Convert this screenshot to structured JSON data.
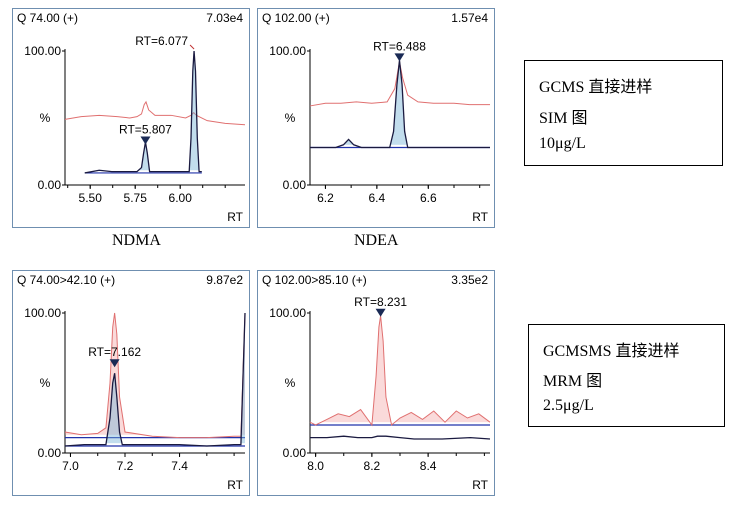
{
  "chart_data": [
    {
      "type": "line",
      "panel": "top-left",
      "header_left": "Q 74.00 (+)",
      "header_right": "7.03e4",
      "xlabel": "RT",
      "ylabel": "%",
      "xlim": [
        5.36,
        6.36
      ],
      "ylim": [
        0,
        100
      ],
      "x_ticks": [
        "5.50",
        "5.75",
        "6.00"
      ],
      "y_ticks": [
        "0.00",
        "100.00"
      ],
      "annotations": [
        {
          "text": "RT=5.807",
          "x": 5.807,
          "y": 31,
          "marker": "triangle"
        },
        {
          "text": "RT=6.077",
          "x": 6.077,
          "y": 100,
          "marker": "tick"
        }
      ],
      "series": [
        {
          "color": "#e07070",
          "fill": false,
          "points": [
            [
              5.36,
              49
            ],
            [
              5.45,
              51
            ],
            [
              5.55,
              52
            ],
            [
              5.65,
              51
            ],
            [
              5.72,
              50
            ],
            [
              5.76,
              51
            ],
            [
              5.785,
              53
            ],
            [
              5.8,
              60
            ],
            [
              5.81,
              62
            ],
            [
              5.825,
              56
            ],
            [
              5.86,
              52
            ],
            [
              5.95,
              52
            ],
            [
              6.03,
              50
            ],
            [
              6.06,
              52
            ],
            [
              6.075,
              54
            ],
            [
              6.09,
              52
            ],
            [
              6.15,
              48
            ],
            [
              6.25,
              46
            ],
            [
              6.36,
              45
            ]
          ]
        },
        {
          "color": "#1a1a40",
          "fill": true,
          "points": [
            [
              5.47,
              9
            ],
            [
              5.55,
              11
            ],
            [
              5.62,
              10
            ],
            [
              5.7,
              10
            ],
            [
              5.76,
              10
            ],
            [
              5.785,
              13
            ],
            [
              5.797,
              24
            ],
            [
              5.807,
              32
            ],
            [
              5.817,
              24
            ],
            [
              5.83,
              10
            ],
            [
              5.9,
              10
            ],
            [
              6.0,
              10
            ],
            [
              6.05,
              10
            ],
            [
              6.06,
              35
            ],
            [
              6.07,
              85
            ],
            [
              6.077,
              100
            ],
            [
              6.085,
              85
            ],
            [
              6.095,
              35
            ],
            [
              6.105,
              10
            ],
            [
              6.12,
              10
            ]
          ]
        }
      ]
    },
    {
      "type": "line",
      "panel": "top-right",
      "header_left": "Q 102.00 (+)",
      "header_right": "1.57e4",
      "xlabel": "RT",
      "ylabel": "%",
      "xlim": [
        6.14,
        6.84
      ],
      "ylim": [
        0,
        100
      ],
      "x_ticks": [
        "6.2",
        "6.4",
        "6.6"
      ],
      "y_ticks": [
        "0.00",
        "100.00"
      ],
      "annotations": [
        {
          "text": "RT=6.488",
          "x": 6.488,
          "y": 93,
          "marker": "triangle"
        }
      ],
      "series": [
        {
          "color": "#e07070",
          "fill": false,
          "points": [
            [
              6.14,
              59
            ],
            [
              6.2,
              61
            ],
            [
              6.26,
              61
            ],
            [
              6.32,
              62
            ],
            [
              6.38,
              61
            ],
            [
              6.44,
              62
            ],
            [
              6.47,
              72
            ],
            [
              6.488,
              92
            ],
            [
              6.5,
              80
            ],
            [
              6.52,
              67
            ],
            [
              6.56,
              62
            ],
            [
              6.62,
              61
            ],
            [
              6.7,
              61
            ],
            [
              6.76,
              60
            ],
            [
              6.84,
              60
            ]
          ]
        },
        {
          "color": "#1a1a40",
          "fill": true,
          "points": [
            [
              6.14,
              28
            ],
            [
              6.24,
              28
            ],
            [
              6.27,
              30
            ],
            [
              6.29,
              34
            ],
            [
              6.31,
              30
            ],
            [
              6.34,
              28
            ],
            [
              6.4,
              28
            ],
            [
              6.45,
              28
            ],
            [
              6.465,
              40
            ],
            [
              6.478,
              75
            ],
            [
              6.488,
              93
            ],
            [
              6.498,
              75
            ],
            [
              6.508,
              40
            ],
            [
              6.52,
              28
            ],
            [
              6.6,
              28
            ],
            [
              6.7,
              28
            ],
            [
              6.8,
              28
            ],
            [
              6.84,
              28
            ]
          ]
        }
      ]
    },
    {
      "type": "line",
      "panel": "bottom-left",
      "header_left": "Q 74.00>42.10 (+)",
      "header_right": "9.87e2",
      "xlabel": "RT",
      "ylabel": "%",
      "xlim": [
        6.98,
        7.64
      ],
      "ylim": [
        0,
        100
      ],
      "x_ticks": [
        "7.0",
        "7.2",
        "7.4"
      ],
      "y_ticks": [
        "0.00",
        "100.00"
      ],
      "annotations": [
        {
          "text": "RT=7.162",
          "x": 7.162,
          "y": 62,
          "marker": "triangle"
        }
      ],
      "series": [
        {
          "color": "#e07070",
          "fill": true,
          "points": [
            [
              6.98,
              15
            ],
            [
              7.04,
              13
            ],
            [
              7.1,
              14
            ],
            [
              7.13,
              18
            ],
            [
              7.145,
              50
            ],
            [
              7.155,
              90
            ],
            [
              7.162,
              100
            ],
            [
              7.17,
              85
            ],
            [
              7.18,
              40
            ],
            [
              7.2,
              15
            ],
            [
              7.3,
              12
            ],
            [
              7.4,
              11
            ],
            [
              7.5,
              11
            ],
            [
              7.6,
              12
            ],
            [
              7.625,
              12
            ],
            [
              7.64,
              100
            ]
          ]
        },
        {
          "color": "#1a1a40",
          "fill": true,
          "points": [
            [
              6.98,
              5
            ],
            [
              7.05,
              6
            ],
            [
              7.13,
              6
            ],
            [
              7.145,
              25
            ],
            [
              7.155,
              50
            ],
            [
              7.162,
              57
            ],
            [
              7.17,
              40
            ],
            [
              7.18,
              15
            ],
            [
              7.19,
              6
            ],
            [
              7.3,
              6
            ],
            [
              7.4,
              6
            ],
            [
              7.5,
              5
            ],
            [
              7.6,
              6
            ],
            [
              7.625,
              6
            ],
            [
              7.64,
              100
            ]
          ]
        }
      ]
    },
    {
      "type": "line",
      "panel": "bottom-right",
      "header_left": "Q 102.00>85.10 (+)",
      "header_right": "3.35e2",
      "xlabel": "RT",
      "ylabel": "%",
      "xlim": [
        7.98,
        8.62
      ],
      "ylim": [
        0,
        100
      ],
      "x_ticks": [
        "8.0",
        "8.2",
        "8.4"
      ],
      "y_ticks": [
        "0.00",
        "100.00"
      ],
      "annotations": [
        {
          "text": "RT=8.231",
          "x": 8.231,
          "y": 98,
          "marker": "triangle"
        }
      ],
      "series": [
        {
          "color": "#e07070",
          "fill": true,
          "points": [
            [
              7.98,
              22
            ],
            [
              8.0,
              20
            ],
            [
              8.04,
              24
            ],
            [
              8.08,
              28
            ],
            [
              8.12,
              26
            ],
            [
              8.16,
              31
            ],
            [
              8.2,
              20
            ],
            [
              8.215,
              55
            ],
            [
              8.225,
              90
            ],
            [
              8.231,
              98
            ],
            [
              8.24,
              80
            ],
            [
              8.25,
              40
            ],
            [
              8.27,
              20
            ],
            [
              8.3,
              25
            ],
            [
              8.34,
              29
            ],
            [
              8.38,
              24
            ],
            [
              8.42,
              30
            ],
            [
              8.46,
              22
            ],
            [
              8.5,
              30
            ],
            [
              8.54,
              25
            ],
            [
              8.58,
              28
            ],
            [
              8.62,
              22
            ]
          ]
        },
        {
          "color": "#1a1a40",
          "fill": false,
          "points": [
            [
              7.98,
              11
            ],
            [
              8.04,
              11
            ],
            [
              8.1,
              12
            ],
            [
              8.15,
              11
            ],
            [
              8.2,
              11
            ],
            [
              8.22,
              12
            ],
            [
              8.25,
              12
            ],
            [
              8.3,
              11
            ],
            [
              8.35,
              10
            ],
            [
              8.45,
              10
            ],
            [
              8.55,
              11
            ],
            [
              8.62,
              10
            ]
          ]
        }
      ]
    }
  ],
  "captions": {
    "left": "NDMA",
    "right": "NDEA"
  },
  "note_top": {
    "line1": "GCMS 直接进样",
    "line2": "SIM 图",
    "line3": "10μg/L"
  },
  "note_bottom": {
    "line1": "GCMSMS 直接进样",
    "line2": "MRM 图",
    "line3": "2.5μg/L"
  }
}
